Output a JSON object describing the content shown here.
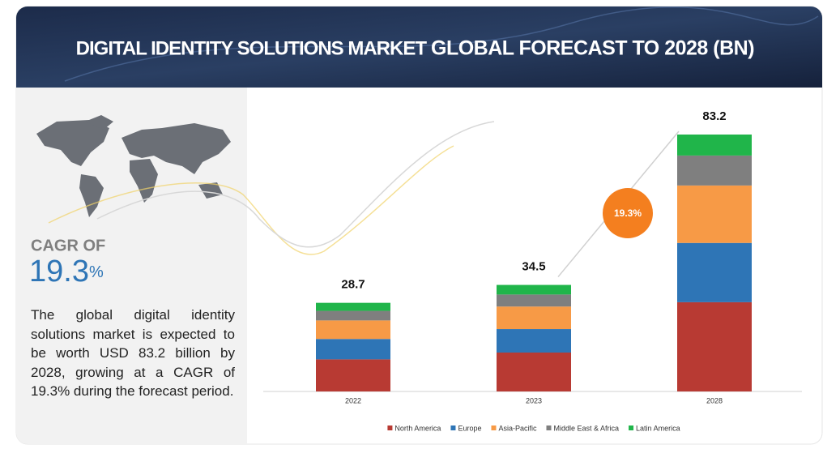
{
  "header": {
    "title_light": "DIGITAL IDENTITY SOLUTIONS MARKET",
    "title_bold": "GLOBAL FORECAST TO 2028 (BN)"
  },
  "sidebar": {
    "cagr_label": "CAGR OF",
    "cagr_value": "19.3",
    "cagr_unit": "%",
    "description": "The global digital identity solutions market is expected to be worth USD 83.2 billion by 2028, growing at a CAGR of 19.3% during the forecast period."
  },
  "chart_data": {
    "type": "stacked_bar",
    "categories": [
      "2022",
      "2023",
      "2028"
    ],
    "totals": [
      28.7,
      34.5,
      83.2
    ],
    "annotation": "19.3%",
    "series": [
      {
        "name": "North America",
        "color": "#b83a33",
        "values": [
          10.4,
          12.6,
          28.9
        ]
      },
      {
        "name": "Europe",
        "color": "#2e75b6",
        "values": [
          6.6,
          7.6,
          19.2
        ]
      },
      {
        "name": "Asia-Pacific",
        "color": "#f79a46",
        "values": [
          6.0,
          7.3,
          18.6
        ]
      },
      {
        "name": "Middle East & Africa",
        "color": "#7f7f7f",
        "values": [
          3.1,
          3.9,
          9.7
        ]
      },
      {
        "name": "Latin America",
        "color": "#20b54a",
        "values": [
          2.6,
          3.1,
          6.8
        ]
      }
    ],
    "legend": "bottom"
  }
}
